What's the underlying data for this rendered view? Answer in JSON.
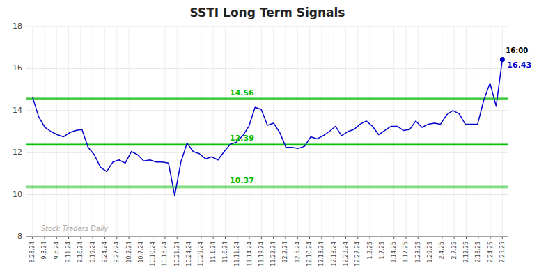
{
  "chart_data": {
    "type": "line",
    "title": "SSTI Long Term Signals",
    "color": "#0000cc",
    "grid": true,
    "xlim": [
      -0.5,
      39.5
    ],
    "xticks": [
      {
        "value": 0,
        "label": "8.28.24"
      },
      {
        "value": 1,
        "label": "9.3.24"
      },
      {
        "value": 2,
        "label": "9.6.24"
      },
      {
        "value": 3,
        "label": "9.11.24"
      },
      {
        "value": 4,
        "label": "9.16.24"
      },
      {
        "value": 5,
        "label": "9.19.24"
      },
      {
        "value": 6,
        "label": "9.24.24"
      },
      {
        "value": 7,
        "label": "9.27.24"
      },
      {
        "value": 8,
        "label": "10.2.24"
      },
      {
        "value": 9,
        "label": "10.7.24"
      },
      {
        "value": 10,
        "label": "10.10.24"
      },
      {
        "value": 11,
        "label": "10.16.24"
      },
      {
        "value": 12,
        "label": "10.21.24"
      },
      {
        "value": 13,
        "label": "10.24.24"
      },
      {
        "value": 14,
        "label": "10.29.24"
      },
      {
        "value": 15,
        "label": "11.1.24"
      },
      {
        "value": 16,
        "label": "11.6.24"
      },
      {
        "value": 17,
        "label": "11.11.24"
      },
      {
        "value": 18,
        "label": "11.14.24"
      },
      {
        "value": 19,
        "label": "11.19.24"
      },
      {
        "value": 20,
        "label": "11.22.24"
      },
      {
        "value": 21,
        "label": "12.2.24"
      },
      {
        "value": 22,
        "label": "12.5.24"
      },
      {
        "value": 23,
        "label": "12.10.24"
      },
      {
        "value": 24,
        "label": "12.13.24"
      },
      {
        "value": 25,
        "label": "12.18.24"
      },
      {
        "value": 26,
        "label": "12.23.24"
      },
      {
        "value": 27,
        "label": "12.27.24"
      },
      {
        "value": 28,
        "label": "1.2.25"
      },
      {
        "value": 29,
        "label": "1.7.25"
      },
      {
        "value": 30,
        "label": "1.14.25"
      },
      {
        "value": 31,
        "label": "1.17.25"
      },
      {
        "value": 32,
        "label": "1.23.25"
      },
      {
        "value": 33,
        "label": "1.29.25"
      },
      {
        "value": 34,
        "label": "2.4.25"
      },
      {
        "value": 35,
        "label": "2.7.25"
      },
      {
        "value": 36,
        "label": "2.12.25"
      },
      {
        "value": 37,
        "label": "2.18.25"
      },
      {
        "value": 38,
        "label": "2.24.25"
      },
      {
        "value": 39,
        "label": "2.25.25"
      }
    ],
    "ylim": [
      8,
      18
    ],
    "yticks": [
      8,
      10,
      12,
      14,
      16,
      18
    ],
    "values": [
      14.65,
      13.7,
      13.2,
      13.0,
      12.85,
      12.75,
      12.95,
      13.05,
      13.1,
      12.25,
      11.9,
      11.3,
      11.1,
      11.55,
      11.65,
      11.5,
      12.05,
      11.9,
      11.6,
      11.65,
      11.55,
      11.55,
      11.5,
      9.95,
      11.55,
      12.45,
      12.05,
      11.95,
      11.7,
      11.8,
      11.65,
      12.05,
      12.4,
      12.5,
      12.8,
      13.25,
      14.15,
      14.05,
      13.3,
      13.4,
      12.95,
      12.25,
      12.25,
      12.2,
      12.3,
      12.75,
      12.65,
      12.8,
      13.0,
      13.25,
      12.8,
      13.0,
      13.1,
      13.35,
      13.5,
      13.25,
      12.85,
      13.05,
      13.25,
      13.25,
      13.05,
      13.1,
      13.5,
      13.2,
      13.35,
      13.4,
      13.35,
      13.8,
      14.0,
      13.85,
      13.35,
      13.35,
      13.35,
      14.5,
      15.3,
      14.2,
      16.43
    ],
    "hlines": [
      {
        "y": 14.56,
        "label": "14.56",
        "color": "#00bb00"
      },
      {
        "y": 12.39,
        "label": "12.39",
        "color": "#00bb00"
      },
      {
        "y": 10.37,
        "label": "10.37",
        "color": "#00bb00"
      }
    ],
    "annotations": [
      "16:00",
      "16.43"
    ],
    "watermark": "Stock Traders Daily"
  }
}
